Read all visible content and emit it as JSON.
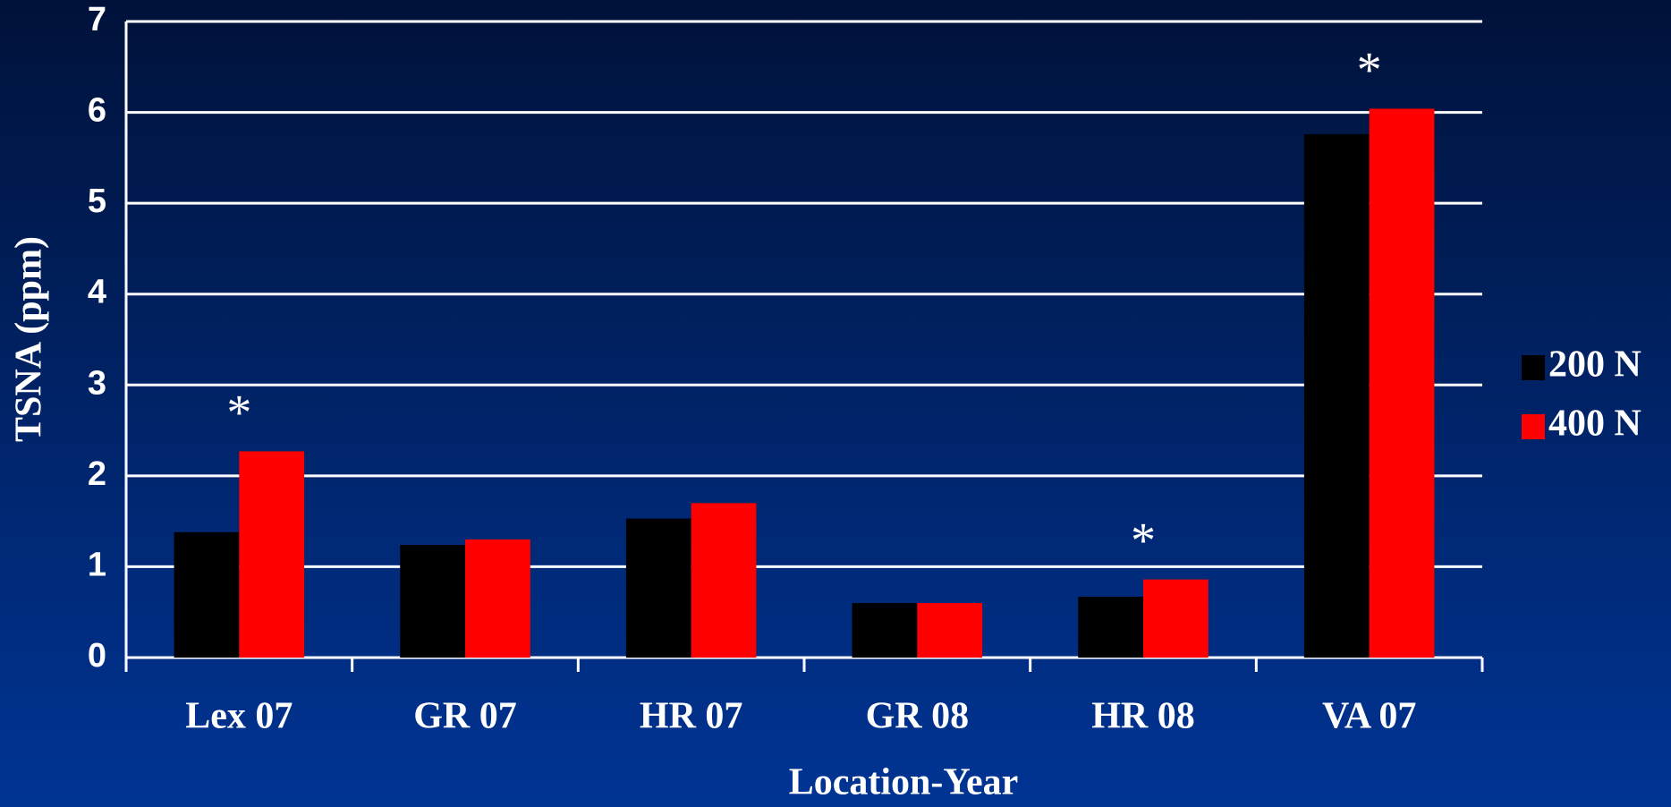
{
  "chart_data": {
    "type": "bar",
    "xlabel": "Location-Year",
    "ylabel": "TSNA (ppm)",
    "categories": [
      "Lex 07",
      "GR 07",
      "HR 07",
      "GR 08",
      "HR 08",
      "VA 07"
    ],
    "series": [
      {
        "name": "200 N",
        "color": "#000000",
        "values": [
          1.38,
          1.24,
          1.53,
          0.6,
          0.67,
          5.76
        ]
      },
      {
        "name": "400 N",
        "color": "#ff0000",
        "values": [
          2.27,
          1.3,
          1.7,
          0.6,
          0.86,
          6.04
        ]
      }
    ],
    "annotations": [
      {
        "text": "*",
        "category": "Lex 07"
      },
      {
        "text": "*",
        "category": "HR 08"
      },
      {
        "text": "*",
        "category": "VA 07"
      }
    ],
    "ylim": [
      0,
      7
    ],
    "yticks": [
      0,
      1,
      2,
      3,
      4,
      5,
      6,
      7
    ],
    "grid": true,
    "legend": "right"
  }
}
